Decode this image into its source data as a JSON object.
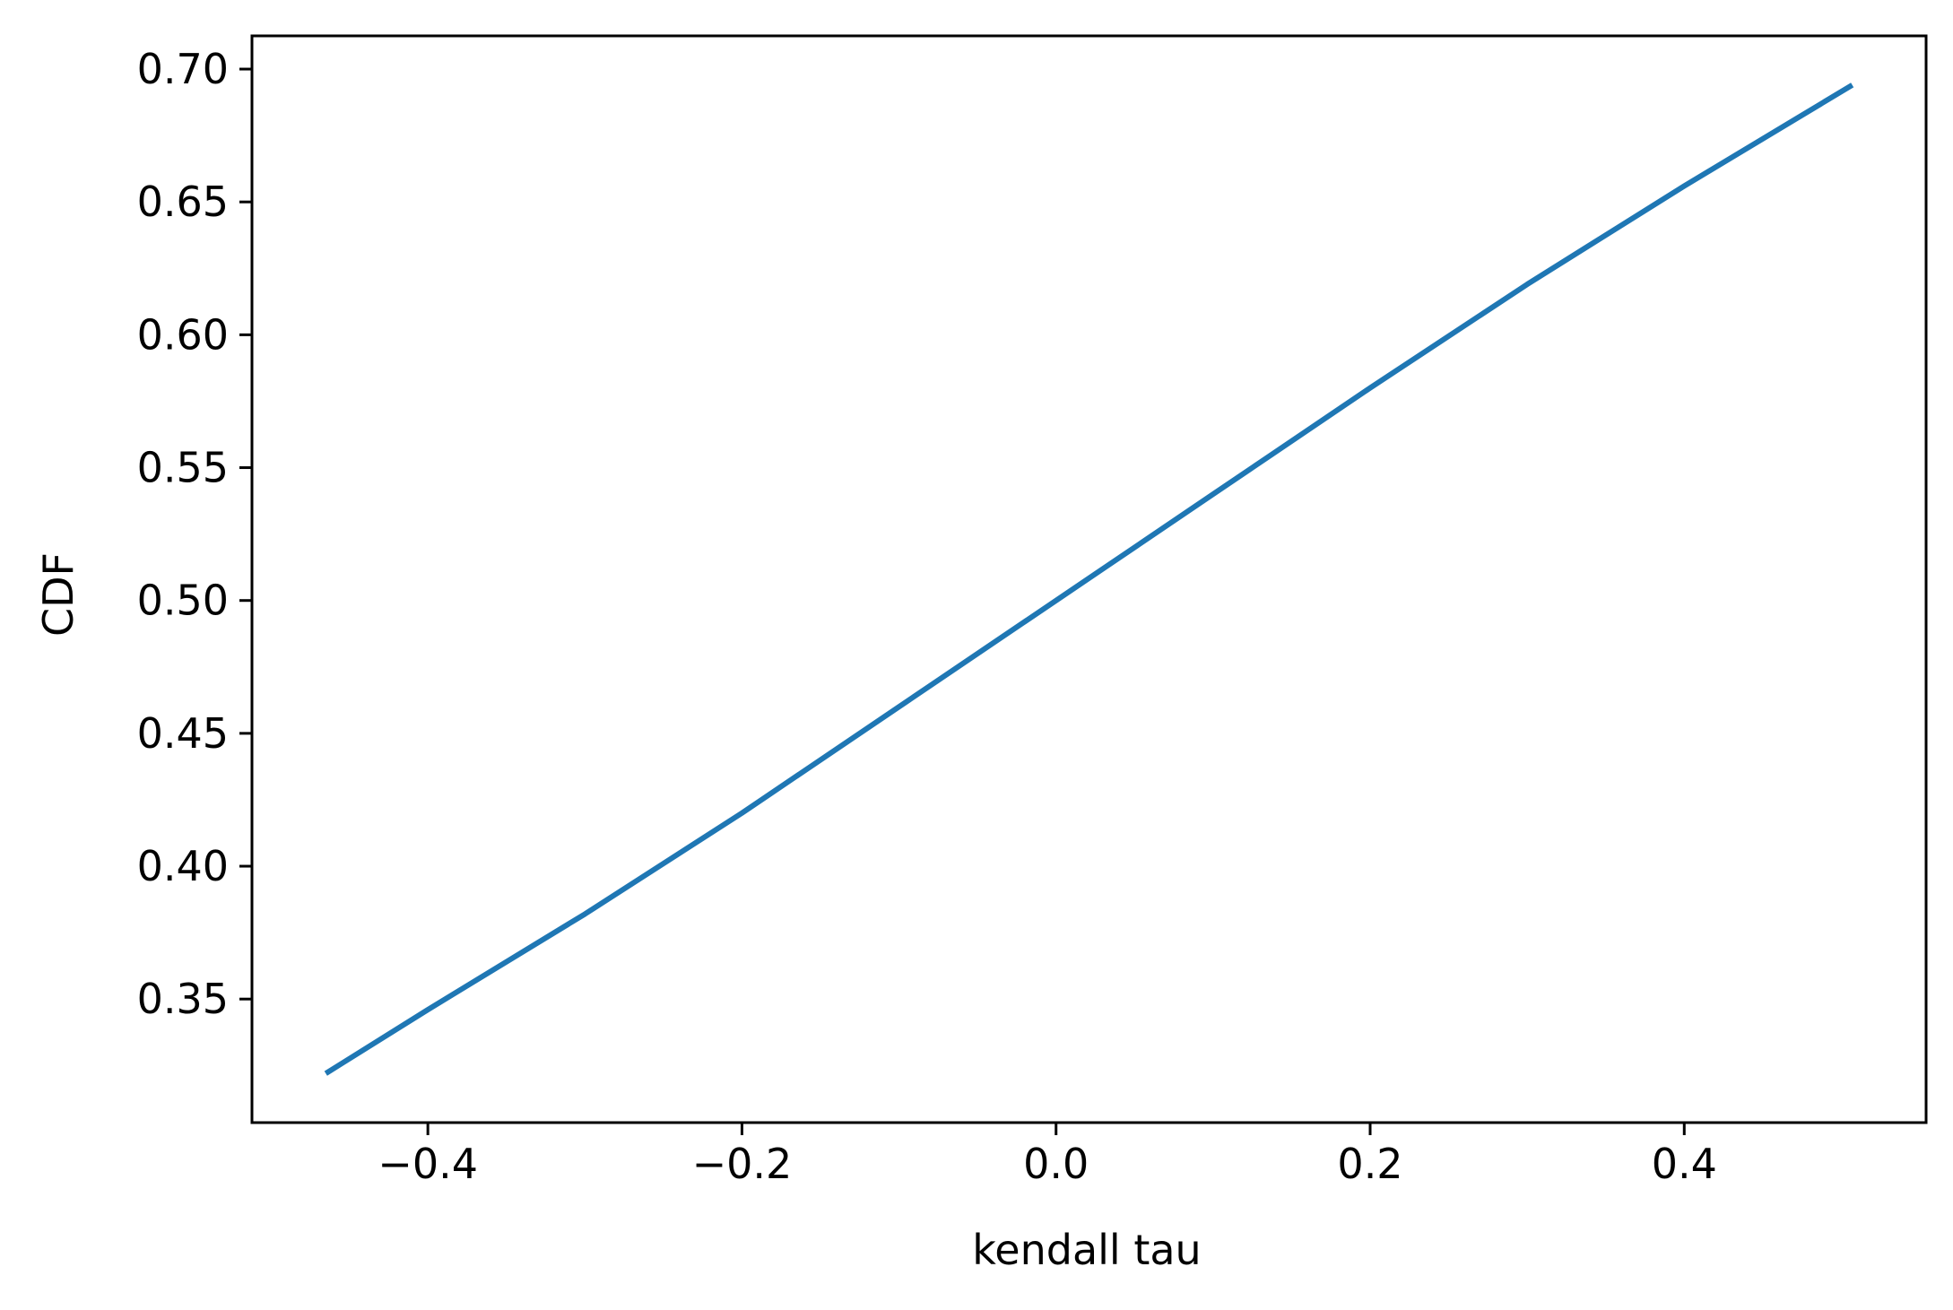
{
  "chart_data": {
    "type": "line",
    "title": "",
    "xlabel": "kendall tau",
    "ylabel": "CDF",
    "xlim": [
      -0.512,
      0.554
    ],
    "ylim": [
      0.3035,
      0.7125
    ],
    "xticks": [
      -0.4,
      -0.2,
      0.0,
      0.2,
      0.4
    ],
    "xtick_labels": [
      "−0.4",
      "−0.2",
      "0.0",
      "0.2",
      "0.4"
    ],
    "yticks": [
      0.35,
      0.4,
      0.45,
      0.5,
      0.55,
      0.6,
      0.65,
      0.7
    ],
    "ytick_labels": [
      "0.35",
      "0.40",
      "0.45",
      "0.50",
      "0.55",
      "0.60",
      "0.65",
      "0.70"
    ],
    "grid": false,
    "legend": "none",
    "series": [
      {
        "color": "#1f77b4",
        "x": [
          -0.465,
          -0.4,
          -0.3,
          -0.2,
          -0.1,
          0.0,
          0.1,
          0.2,
          0.3,
          0.4,
          0.507
        ],
        "y": [
          0.322,
          0.346,
          0.382,
          0.42,
          0.46,
          0.5,
          0.54,
          0.58,
          0.619,
          0.656,
          0.694
        ]
      }
    ]
  }
}
